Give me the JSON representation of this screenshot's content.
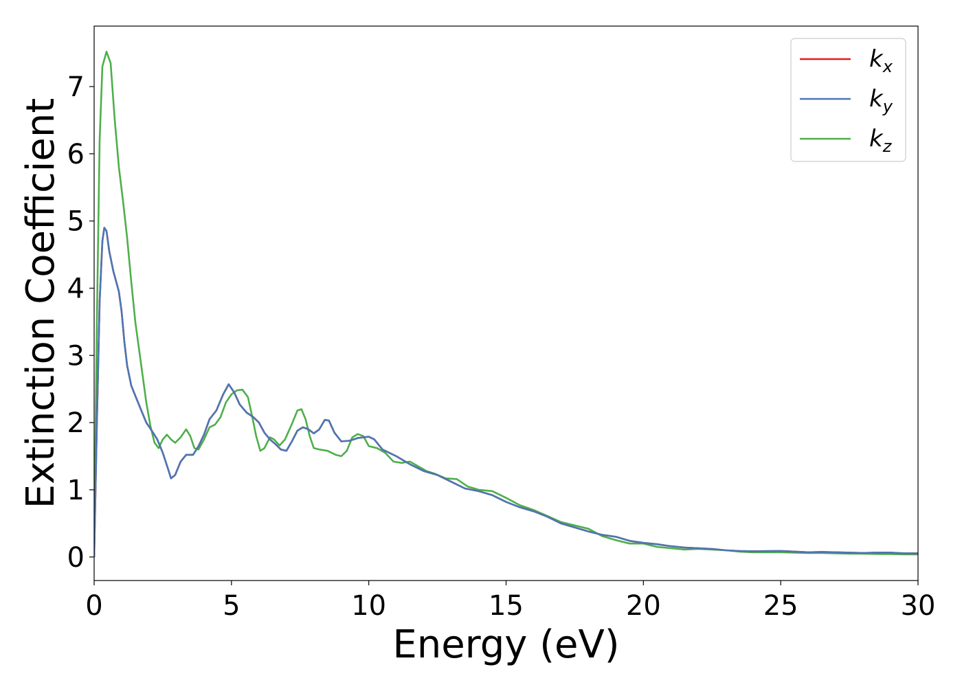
{
  "chart_data": {
    "type": "line",
    "xlabel": "Energy (eV)",
    "ylabel": "Extinction Coefficient",
    "xlim": [
      0,
      30
    ],
    "ylim": [
      -0.35,
      7.9
    ],
    "xticks": [
      0,
      5,
      10,
      15,
      20,
      25,
      30
    ],
    "yticks": [
      0,
      1,
      2,
      3,
      4,
      5,
      6,
      7
    ],
    "grid": false,
    "legend_position": "top-right",
    "series": [
      {
        "name": "k_x",
        "base": "k",
        "sub": "x",
        "color": "#e41a1c",
        "points": [
          [
            0,
            0
          ],
          [
            0.1,
            2.0
          ],
          [
            0.2,
            3.8
          ],
          [
            0.3,
            4.7
          ],
          [
            0.37,
            4.9
          ],
          [
            0.45,
            4.85
          ],
          [
            0.55,
            4.55
          ],
          [
            0.7,
            4.25
          ],
          [
            0.9,
            3.95
          ],
          [
            1.0,
            3.65
          ],
          [
            1.1,
            3.2
          ],
          [
            1.2,
            2.85
          ],
          [
            1.35,
            2.55
          ],
          [
            1.5,
            2.4
          ],
          [
            1.7,
            2.2
          ],
          [
            1.9,
            2.0
          ],
          [
            2.1,
            1.88
          ],
          [
            2.3,
            1.75
          ],
          [
            2.5,
            1.55
          ],
          [
            2.7,
            1.3
          ],
          [
            2.8,
            1.17
          ],
          [
            2.95,
            1.22
          ],
          [
            3.15,
            1.42
          ],
          [
            3.35,
            1.52
          ],
          [
            3.6,
            1.52
          ],
          [
            3.8,
            1.65
          ],
          [
            4.0,
            1.82
          ],
          [
            4.2,
            2.05
          ],
          [
            4.45,
            2.18
          ],
          [
            4.7,
            2.42
          ],
          [
            4.9,
            2.57
          ],
          [
            5.1,
            2.45
          ],
          [
            5.3,
            2.27
          ],
          [
            5.55,
            2.15
          ],
          [
            5.8,
            2.08
          ],
          [
            6.0,
            2.0
          ],
          [
            6.2,
            1.85
          ],
          [
            6.4,
            1.75
          ],
          [
            6.6,
            1.68
          ],
          [
            6.8,
            1.6
          ],
          [
            7.0,
            1.58
          ],
          [
            7.2,
            1.72
          ],
          [
            7.4,
            1.88
          ],
          [
            7.6,
            1.93
          ],
          [
            7.8,
            1.9
          ],
          [
            8.0,
            1.84
          ],
          [
            8.2,
            1.9
          ],
          [
            8.4,
            2.04
          ],
          [
            8.55,
            2.03
          ],
          [
            8.75,
            1.85
          ],
          [
            9.0,
            1.72
          ],
          [
            9.3,
            1.73
          ],
          [
            9.6,
            1.77
          ],
          [
            9.8,
            1.78
          ],
          [
            10.0,
            1.79
          ],
          [
            10.2,
            1.75
          ],
          [
            10.5,
            1.6
          ],
          [
            11.0,
            1.5
          ],
          [
            11.5,
            1.38
          ],
          [
            12.0,
            1.28
          ],
          [
            12.5,
            1.22
          ],
          [
            13.0,
            1.12
          ],
          [
            13.5,
            1.02
          ],
          [
            14.0,
            0.98
          ],
          [
            14.5,
            0.92
          ],
          [
            15.0,
            0.82
          ],
          [
            15.5,
            0.74
          ],
          [
            16.0,
            0.68
          ],
          [
            16.5,
            0.6
          ],
          [
            17.0,
            0.5
          ],
          [
            17.5,
            0.44
          ],
          [
            18.0,
            0.38
          ],
          [
            18.5,
            0.33
          ],
          [
            19.0,
            0.3
          ],
          [
            19.5,
            0.24
          ],
          [
            20.0,
            0.21
          ],
          [
            20.5,
            0.19
          ],
          [
            21.0,
            0.16
          ],
          [
            21.5,
            0.14
          ],
          [
            22.0,
            0.13
          ],
          [
            22.5,
            0.12
          ],
          [
            23.0,
            0.1
          ],
          [
            23.5,
            0.09
          ],
          [
            24.0,
            0.085
          ],
          [
            24.5,
            0.088
          ],
          [
            25.0,
            0.09
          ],
          [
            25.5,
            0.08
          ],
          [
            26.0,
            0.07
          ],
          [
            26.5,
            0.075
          ],
          [
            27.0,
            0.07
          ],
          [
            27.5,
            0.065
          ],
          [
            28.0,
            0.06
          ],
          [
            28.5,
            0.065
          ],
          [
            29.0,
            0.065
          ],
          [
            29.5,
            0.055
          ],
          [
            30.0,
            0.055
          ]
        ]
      },
      {
        "name": "k_y",
        "base": "k",
        "sub": "y",
        "color": "#4a77b4",
        "points": [
          [
            0,
            0
          ],
          [
            0.1,
            2.0
          ],
          [
            0.2,
            3.8
          ],
          [
            0.3,
            4.7
          ],
          [
            0.37,
            4.9
          ],
          [
            0.45,
            4.85
          ],
          [
            0.55,
            4.55
          ],
          [
            0.7,
            4.25
          ],
          [
            0.9,
            3.95
          ],
          [
            1.0,
            3.65
          ],
          [
            1.1,
            3.2
          ],
          [
            1.2,
            2.85
          ],
          [
            1.35,
            2.55
          ],
          [
            1.5,
            2.4
          ],
          [
            1.7,
            2.2
          ],
          [
            1.9,
            2.0
          ],
          [
            2.1,
            1.88
          ],
          [
            2.3,
            1.75
          ],
          [
            2.5,
            1.55
          ],
          [
            2.7,
            1.3
          ],
          [
            2.8,
            1.17
          ],
          [
            2.95,
            1.22
          ],
          [
            3.15,
            1.42
          ],
          [
            3.35,
            1.52
          ],
          [
            3.6,
            1.52
          ],
          [
            3.8,
            1.65
          ],
          [
            4.0,
            1.82
          ],
          [
            4.2,
            2.05
          ],
          [
            4.45,
            2.18
          ],
          [
            4.7,
            2.42
          ],
          [
            4.9,
            2.57
          ],
          [
            5.1,
            2.45
          ],
          [
            5.3,
            2.27
          ],
          [
            5.55,
            2.15
          ],
          [
            5.8,
            2.08
          ],
          [
            6.0,
            2.0
          ],
          [
            6.2,
            1.85
          ],
          [
            6.4,
            1.75
          ],
          [
            6.6,
            1.68
          ],
          [
            6.8,
            1.6
          ],
          [
            7.0,
            1.58
          ],
          [
            7.2,
            1.72
          ],
          [
            7.4,
            1.88
          ],
          [
            7.6,
            1.93
          ],
          [
            7.8,
            1.9
          ],
          [
            8.0,
            1.84
          ],
          [
            8.2,
            1.9
          ],
          [
            8.4,
            2.04
          ],
          [
            8.55,
            2.03
          ],
          [
            8.75,
            1.85
          ],
          [
            9.0,
            1.72
          ],
          [
            9.3,
            1.73
          ],
          [
            9.6,
            1.77
          ],
          [
            9.8,
            1.78
          ],
          [
            10.0,
            1.79
          ],
          [
            10.2,
            1.75
          ],
          [
            10.5,
            1.6
          ],
          [
            11.0,
            1.5
          ],
          [
            11.5,
            1.38
          ],
          [
            12.0,
            1.28
          ],
          [
            12.5,
            1.22
          ],
          [
            13.0,
            1.12
          ],
          [
            13.5,
            1.02
          ],
          [
            14.0,
            0.98
          ],
          [
            14.5,
            0.92
          ],
          [
            15.0,
            0.82
          ],
          [
            15.5,
            0.74
          ],
          [
            16.0,
            0.68
          ],
          [
            16.5,
            0.6
          ],
          [
            17.0,
            0.5
          ],
          [
            17.5,
            0.44
          ],
          [
            18.0,
            0.38
          ],
          [
            18.5,
            0.33
          ],
          [
            19.0,
            0.3
          ],
          [
            19.5,
            0.24
          ],
          [
            20.0,
            0.21
          ],
          [
            20.5,
            0.19
          ],
          [
            21.0,
            0.16
          ],
          [
            21.5,
            0.14
          ],
          [
            22.0,
            0.13
          ],
          [
            22.5,
            0.12
          ],
          [
            23.0,
            0.1
          ],
          [
            23.5,
            0.09
          ],
          [
            24.0,
            0.085
          ],
          [
            24.5,
            0.088
          ],
          [
            25.0,
            0.09
          ],
          [
            25.5,
            0.08
          ],
          [
            26.0,
            0.07
          ],
          [
            26.5,
            0.075
          ],
          [
            27.0,
            0.07
          ],
          [
            27.5,
            0.065
          ],
          [
            28.0,
            0.06
          ],
          [
            28.5,
            0.065
          ],
          [
            29.0,
            0.065
          ],
          [
            29.5,
            0.055
          ],
          [
            30.0,
            0.055
          ]
        ]
      },
      {
        "name": "k_z",
        "base": "k",
        "sub": "z",
        "color": "#4daf4a",
        "points": [
          [
            0,
            0
          ],
          [
            0.1,
            3.5
          ],
          [
            0.2,
            6.2
          ],
          [
            0.3,
            7.3
          ],
          [
            0.45,
            7.52
          ],
          [
            0.6,
            7.35
          ],
          [
            0.75,
            6.5
          ],
          [
            0.9,
            5.8
          ],
          [
            1.05,
            5.3
          ],
          [
            1.2,
            4.75
          ],
          [
            1.35,
            4.1
          ],
          [
            1.5,
            3.5
          ],
          [
            1.7,
            2.9
          ],
          [
            1.9,
            2.3
          ],
          [
            2.05,
            1.95
          ],
          [
            2.2,
            1.7
          ],
          [
            2.35,
            1.62
          ],
          [
            2.5,
            1.75
          ],
          [
            2.65,
            1.82
          ],
          [
            2.8,
            1.75
          ],
          [
            2.95,
            1.7
          ],
          [
            3.15,
            1.78
          ],
          [
            3.35,
            1.9
          ],
          [
            3.5,
            1.8
          ],
          [
            3.65,
            1.62
          ],
          [
            3.8,
            1.6
          ],
          [
            4.0,
            1.75
          ],
          [
            4.2,
            1.93
          ],
          [
            4.4,
            1.97
          ],
          [
            4.6,
            2.08
          ],
          [
            4.8,
            2.3
          ],
          [
            5.0,
            2.42
          ],
          [
            5.2,
            2.48
          ],
          [
            5.4,
            2.49
          ],
          [
            5.6,
            2.38
          ],
          [
            5.75,
            2.1
          ],
          [
            5.9,
            1.8
          ],
          [
            6.05,
            1.58
          ],
          [
            6.2,
            1.62
          ],
          [
            6.4,
            1.78
          ],
          [
            6.55,
            1.75
          ],
          [
            6.75,
            1.66
          ],
          [
            6.95,
            1.75
          ],
          [
            7.2,
            1.98
          ],
          [
            7.4,
            2.18
          ],
          [
            7.55,
            2.2
          ],
          [
            7.7,
            2.05
          ],
          [
            7.85,
            1.8
          ],
          [
            8.0,
            1.62
          ],
          [
            8.2,
            1.6
          ],
          [
            8.5,
            1.58
          ],
          [
            8.8,
            1.52
          ],
          [
            9.0,
            1.5
          ],
          [
            9.2,
            1.58
          ],
          [
            9.4,
            1.78
          ],
          [
            9.6,
            1.83
          ],
          [
            9.8,
            1.8
          ],
          [
            10.0,
            1.65
          ],
          [
            10.3,
            1.62
          ],
          [
            10.6,
            1.55
          ],
          [
            10.9,
            1.42
          ],
          [
            11.2,
            1.4
          ],
          [
            11.5,
            1.42
          ],
          [
            11.8,
            1.35
          ],
          [
            12.1,
            1.28
          ],
          [
            12.4,
            1.24
          ],
          [
            12.8,
            1.17
          ],
          [
            13.2,
            1.16
          ],
          [
            13.6,
            1.05
          ],
          [
            14.0,
            1.0
          ],
          [
            14.5,
            0.98
          ],
          [
            15.0,
            0.88
          ],
          [
            15.5,
            0.77
          ],
          [
            16.0,
            0.7
          ],
          [
            16.5,
            0.61
          ],
          [
            17.0,
            0.52
          ],
          [
            17.5,
            0.47
          ],
          [
            18.0,
            0.42
          ],
          [
            18.5,
            0.31
          ],
          [
            19.0,
            0.25
          ],
          [
            19.5,
            0.2
          ],
          [
            20.0,
            0.2
          ],
          [
            20.5,
            0.15
          ],
          [
            21.0,
            0.13
          ],
          [
            21.5,
            0.11
          ],
          [
            22.0,
            0.12
          ],
          [
            22.5,
            0.11
          ],
          [
            23.0,
            0.1
          ],
          [
            23.5,
            0.08
          ],
          [
            24.0,
            0.07
          ],
          [
            24.5,
            0.07
          ],
          [
            25.0,
            0.07
          ],
          [
            25.5,
            0.065
          ],
          [
            26.0,
            0.06
          ],
          [
            26.5,
            0.06
          ],
          [
            27.0,
            0.055
          ],
          [
            27.5,
            0.05
          ],
          [
            28.0,
            0.05
          ],
          [
            28.5,
            0.045
          ],
          [
            29.0,
            0.045
          ],
          [
            29.5,
            0.04
          ],
          [
            30.0,
            0.04
          ]
        ]
      }
    ]
  }
}
